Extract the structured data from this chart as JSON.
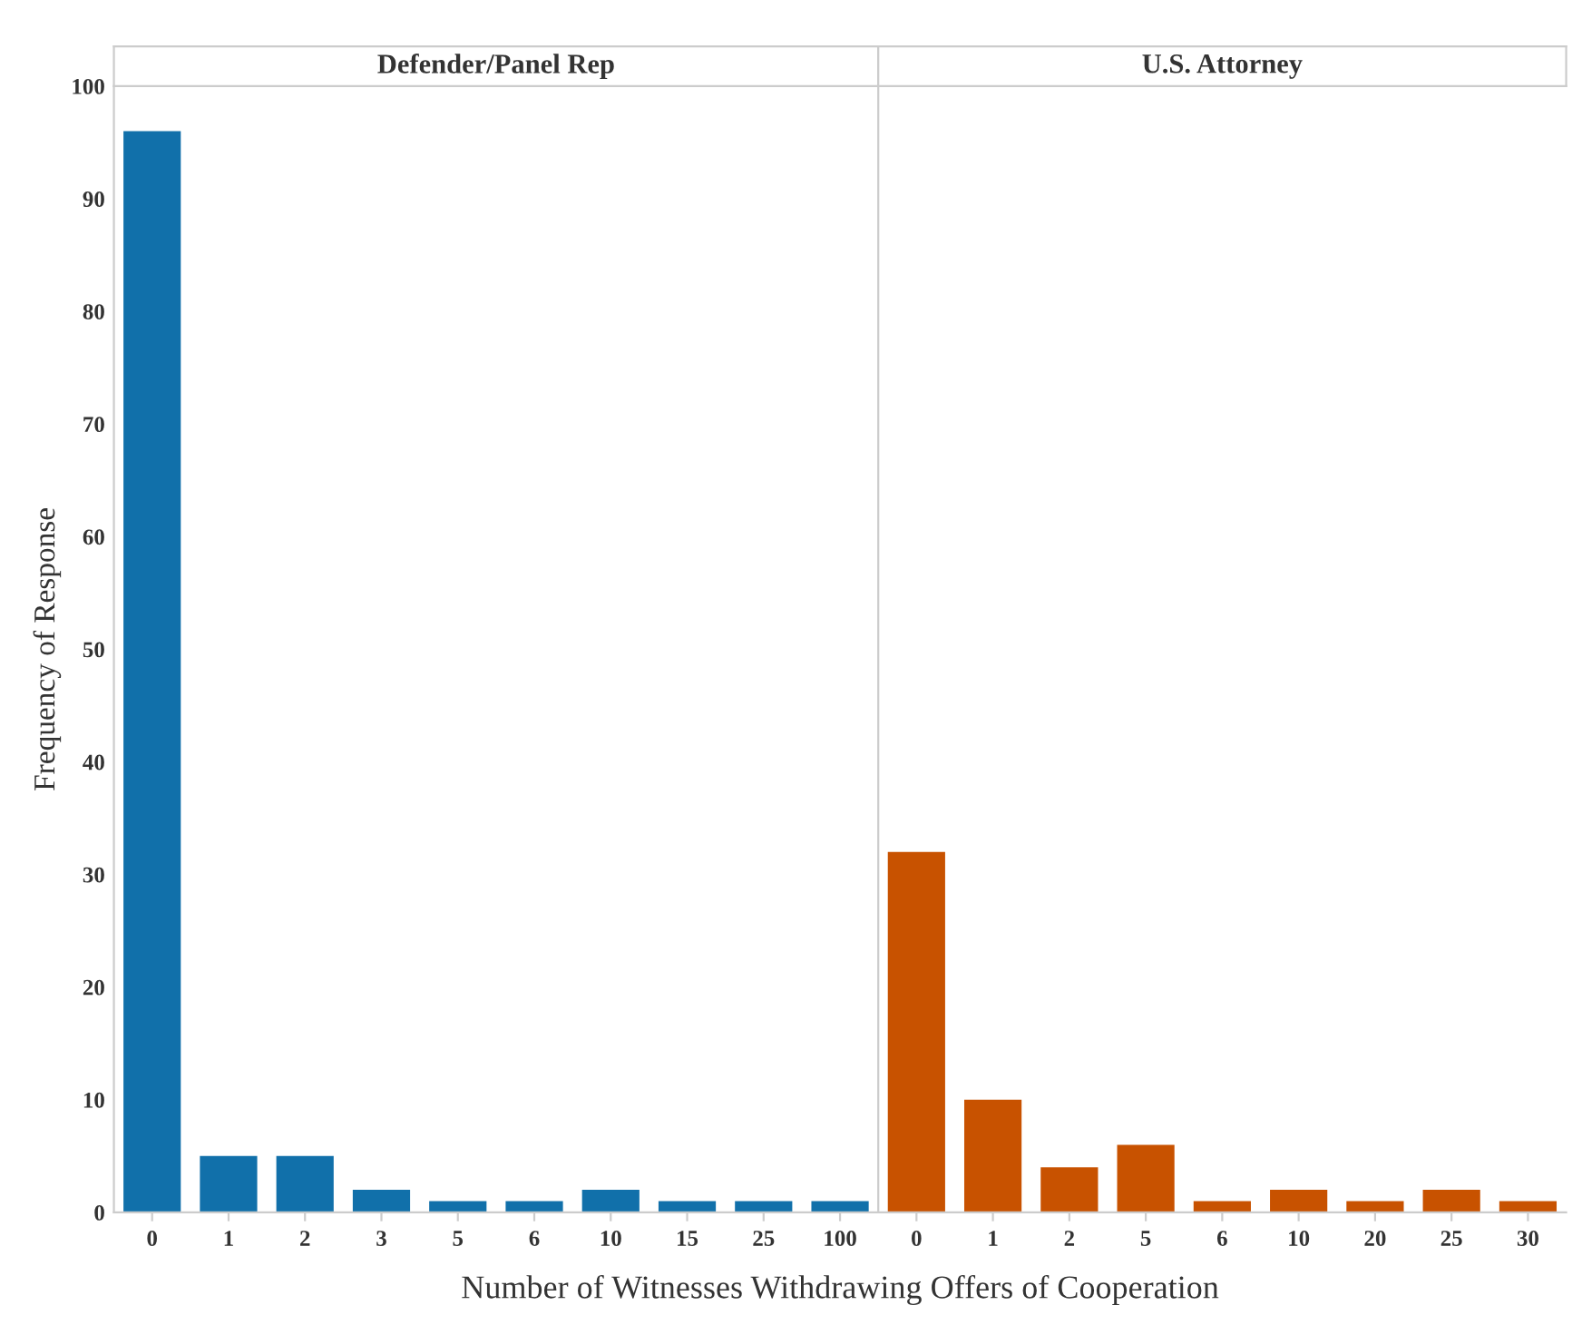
{
  "chart_data": [
    {
      "type": "bar",
      "title": "Defender/Panel Rep",
      "ylabel": "Frequency of Response",
      "xlabel": "Number of Witnesses Withdrawing Offers of Cooperation",
      "categories": [
        "0",
        "1",
        "2",
        "3",
        "5",
        "6",
        "10",
        "15",
        "25",
        "100"
      ],
      "values": [
        96,
        5,
        5,
        2,
        1,
        1,
        2,
        1,
        1,
        1
      ],
      "color": "#1170aa",
      "ylim": [
        0,
        100
      ],
      "yticks": [
        0,
        10,
        20,
        30,
        40,
        50,
        60,
        70,
        80,
        90,
        100
      ],
      "grid": false
    },
    {
      "type": "bar",
      "title": "U.S. Attorney",
      "categories": [
        "0",
        "1",
        "2",
        "5",
        "6",
        "10",
        "20",
        "25",
        "30"
      ],
      "values": [
        32,
        10,
        4,
        6,
        1,
        2,
        1,
        2,
        1
      ],
      "color": "#c85200",
      "ylim": [
        0,
        100
      ],
      "yticks": [
        0,
        10,
        20,
        30,
        40,
        50,
        60,
        70,
        80,
        90,
        100
      ],
      "tick_labels": "x",
      "grid": false
    }
  ]
}
